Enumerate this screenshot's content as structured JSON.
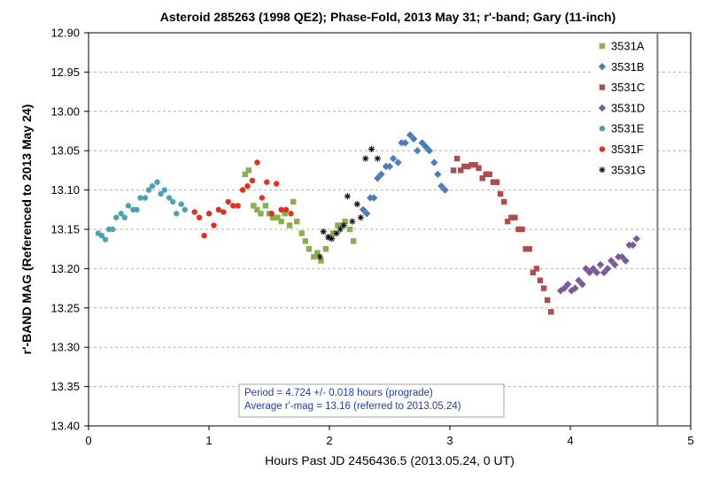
{
  "chart_data": {
    "type": "scatter",
    "title": "Asteroid  285263  (1998 QE2); Phase-Fold,  2013 May 31; r'-band;  Gary (11-inch)",
    "xlabel": "Hours Past JD 2456436.5  (2013.05.24,  0 UT)",
    "ylabel": "r'-BAND MAG  (Referenced to 2013 May 24)",
    "xlim": [
      0,
      5
    ],
    "ylim": [
      12.9,
      13.4
    ],
    "y_inverted": true,
    "x_ticks": [
      "0",
      "1",
      "2",
      "3",
      "4",
      "5"
    ],
    "y_ticks": [
      "12.90",
      "12.95",
      "13.00",
      "13.05",
      "13.10",
      "13.15",
      "13.20",
      "13.25",
      "13.30",
      "13.35",
      "13.40"
    ],
    "grid": "horizontal dashed",
    "legend_position": "top-right",
    "vertical_line_x": 4.724,
    "annotation": [
      "Period = 4.724 +/- 0.018 hours (prograde)",
      "Average  r'-mag = 13.16 (referred  to 2013.05.24)"
    ],
    "series": [
      {
        "name": "3531A",
        "color": "#8cae4e",
        "marker": "square",
        "x": [
          1.3,
          1.33,
          1.37,
          1.4,
          1.43,
          1.47,
          1.5,
          1.53,
          1.57,
          1.6,
          1.63,
          1.67,
          1.7,
          1.73,
          1.77,
          1.8,
          1.83,
          1.87,
          1.9,
          1.93,
          1.97,
          2.0,
          2.03,
          2.07,
          2.1,
          2.13,
          2.17,
          2.2
        ],
        "y": [
          13.08,
          13.075,
          13.12,
          13.125,
          13.13,
          13.12,
          13.13,
          13.135,
          13.135,
          13.14,
          13.13,
          13.145,
          13.115,
          13.14,
          13.155,
          13.165,
          13.175,
          13.185,
          13.18,
          13.19,
          13.175,
          13.16,
          13.155,
          13.145,
          13.145,
          13.14,
          13.15,
          13.165
        ]
      },
      {
        "name": "3531B",
        "color": "#4a7ebb",
        "marker": "diamond",
        "x": [
          2.28,
          2.31,
          2.34,
          2.37,
          2.4,
          2.43,
          2.47,
          2.5,
          2.53,
          2.57,
          2.6,
          2.63,
          2.67,
          2.7,
          2.73,
          2.77,
          2.8,
          2.83,
          2.87,
          2.9,
          2.93,
          2.96
        ],
        "y": [
          13.125,
          13.13,
          13.11,
          13.11,
          13.085,
          13.08,
          13.07,
          13.07,
          13.06,
          13.065,
          13.04,
          13.04,
          13.03,
          13.035,
          13.05,
          13.04,
          13.045,
          13.05,
          13.065,
          13.08,
          13.095,
          13.1
        ]
      },
      {
        "name": "3531C",
        "color": "#b04c4c",
        "marker": "square",
        "x": [
          3.03,
          3.06,
          3.09,
          3.12,
          3.15,
          3.18,
          3.21,
          3.24,
          3.27,
          3.3,
          3.33,
          3.36,
          3.39,
          3.42,
          3.45,
          3.48,
          3.51,
          3.54,
          3.57,
          3.6,
          3.63,
          3.66,
          3.69,
          3.72,
          3.75,
          3.78,
          3.81,
          3.84
        ],
        "y": [
          13.075,
          13.06,
          13.075,
          13.07,
          13.07,
          13.068,
          13.068,
          13.072,
          13.085,
          13.08,
          13.08,
          13.09,
          13.09,
          13.105,
          13.115,
          13.14,
          13.135,
          13.135,
          13.15,
          13.15,
          13.175,
          13.175,
          13.205,
          13.2,
          13.215,
          13.225,
          13.24,
          13.255
        ]
      },
      {
        "name": "3531D",
        "color": "#7b5a9b",
        "marker": "diamond",
        "x": [
          3.92,
          3.95,
          3.98,
          4.01,
          4.04,
          4.07,
          4.1,
          4.13,
          4.16,
          4.19,
          4.22,
          4.25,
          4.28,
          4.31,
          4.34,
          4.37,
          4.4,
          4.43,
          4.46,
          4.49,
          4.52,
          4.55
        ],
        "y": [
          13.228,
          13.225,
          13.22,
          13.228,
          13.225,
          13.215,
          13.22,
          13.2,
          13.205,
          13.2,
          13.205,
          13.195,
          13.205,
          13.2,
          13.19,
          13.195,
          13.185,
          13.185,
          13.19,
          13.17,
          13.17,
          13.162
        ]
      },
      {
        "name": "3531E",
        "color": "#4aa3b3",
        "marker": "circle",
        "x": [
          0.08,
          0.11,
          0.14,
          0.17,
          0.2,
          0.23,
          0.27,
          0.3,
          0.33,
          0.37,
          0.4,
          0.43,
          0.47,
          0.5,
          0.53,
          0.57,
          0.6,
          0.63,
          0.67,
          0.7,
          0.73,
          0.77,
          0.8
        ],
        "y": [
          13.155,
          13.158,
          13.163,
          13.15,
          13.15,
          13.135,
          13.13,
          13.135,
          13.12,
          13.125,
          13.125,
          13.11,
          13.11,
          13.1,
          13.095,
          13.09,
          13.105,
          13.1,
          13.11,
          13.115,
          13.13,
          13.118,
          13.125
        ]
      },
      {
        "name": "3531F",
        "color": "#e0301e",
        "marker": "circle",
        "x": [
          0.88,
          0.92,
          0.96,
          1.0,
          1.04,
          1.08,
          1.12,
          1.16,
          1.2,
          1.24,
          1.28,
          1.32,
          1.36,
          1.4,
          1.44,
          1.48,
          1.52,
          1.56,
          1.6,
          1.64,
          1.68
        ],
        "y": [
          13.128,
          13.135,
          13.158,
          13.13,
          13.145,
          13.125,
          13.128,
          13.115,
          13.12,
          13.12,
          13.1,
          13.095,
          13.088,
          13.065,
          13.11,
          13.09,
          13.13,
          13.092,
          13.125,
          13.125,
          13.13
        ]
      },
      {
        "name": "3531G",
        "color": "#111111",
        "marker": "star",
        "x": [
          1.92,
          1.95,
          1.99,
          2.02,
          2.06,
          2.09,
          2.12,
          2.15,
          2.19,
          2.23,
          2.26,
          2.3,
          2.35,
          2.4
        ],
        "y": [
          13.185,
          13.153,
          13.16,
          13.162,
          13.155,
          13.15,
          13.145,
          13.108,
          13.14,
          13.118,
          13.135,
          13.06,
          13.048,
          13.06
        ]
      }
    ]
  }
}
